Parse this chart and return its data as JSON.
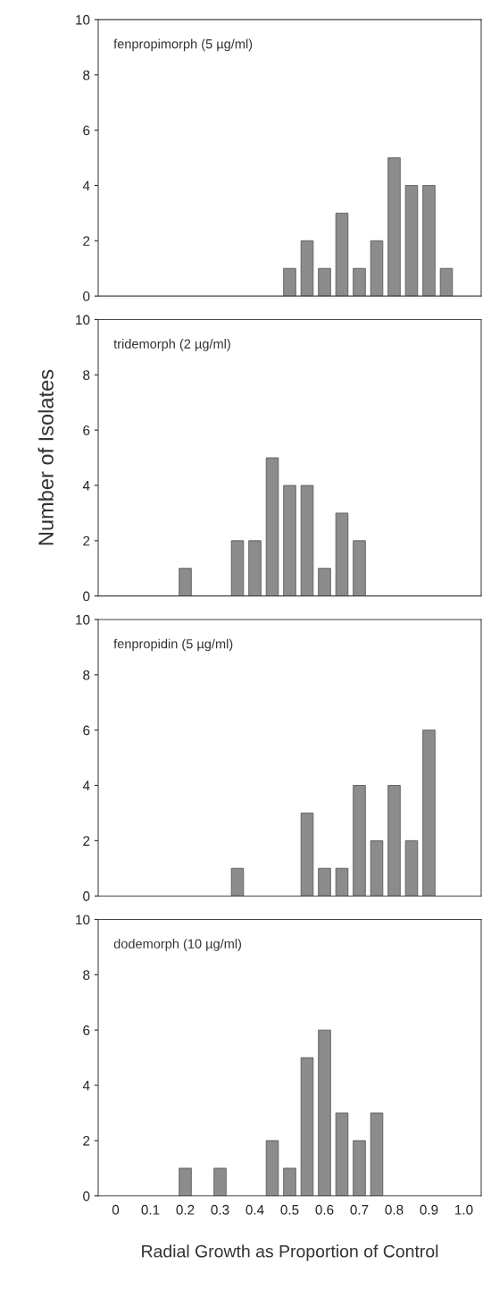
{
  "chart_data": [
    {
      "type": "bar",
      "title": "fenpropimorph (5 µg/ml)",
      "x": [
        0.5,
        0.55,
        0.6,
        0.65,
        0.7,
        0.75,
        0.8,
        0.85,
        0.9,
        0.95
      ],
      "values": [
        1,
        2,
        1,
        3,
        1,
        2,
        5,
        4,
        4,
        1
      ],
      "color": "#8c8c8c",
      "xlim": [
        -0.05,
        1.05
      ],
      "ylim": [
        0,
        10
      ],
      "yticks": [
        0,
        2,
        4,
        6,
        8,
        10
      ],
      "tick_labels": "y",
      "grid": false
    },
    {
      "type": "bar",
      "title": "tridemorph (2 µg/ml)",
      "ylabel": "Number of Isolates",
      "x": [
        0.2,
        0.35,
        0.4,
        0.45,
        0.5,
        0.55,
        0.6,
        0.65,
        0.7
      ],
      "values": [
        1,
        2,
        2,
        5,
        4,
        4,
        1,
        3,
        2
      ],
      "color": "#8c8c8c",
      "xlim": [
        -0.05,
        1.05
      ],
      "ylim": [
        0,
        10
      ],
      "yticks": [
        0,
        2,
        4,
        6,
        8,
        10
      ],
      "tick_labels": "y",
      "grid": false
    },
    {
      "type": "bar",
      "title": "fenpropidin (5 µg/ml)",
      "x": [
        0.35,
        0.55,
        0.6,
        0.65,
        0.7,
        0.75,
        0.8,
        0.85,
        0.9
      ],
      "values": [
        1,
        3,
        1,
        1,
        4,
        2,
        4,
        2,
        6
      ],
      "color": "#8c8c8c",
      "xlim": [
        -0.05,
        1.05
      ],
      "ylim": [
        0,
        10
      ],
      "yticks": [
        0,
        2,
        4,
        6,
        8,
        10
      ],
      "tick_labels": "y",
      "grid": false
    },
    {
      "type": "bar",
      "title": "dodemorph (10 µg/ml)",
      "xlabel": "Radial Growth as Proportion of Control",
      "x": [
        0.2,
        0.3,
        0.45,
        0.5,
        0.55,
        0.6,
        0.65,
        0.7,
        0.75
      ],
      "values": [
        1,
        1,
        2,
        1,
        5,
        6,
        3,
        2,
        3
      ],
      "color": "#8c8c8c",
      "xlim": [
        -0.05,
        1.05
      ],
      "xticks": [
        0,
        0.1,
        0.2,
        0.3,
        0.4,
        0.5,
        0.6,
        0.7,
        0.8,
        0.9,
        {
          "value": 1,
          "label": "1.0"
        }
      ],
      "ylim": [
        0,
        10
      ],
      "yticks": [
        0,
        2,
        4,
        6,
        8,
        10
      ],
      "grid": false
    }
  ]
}
